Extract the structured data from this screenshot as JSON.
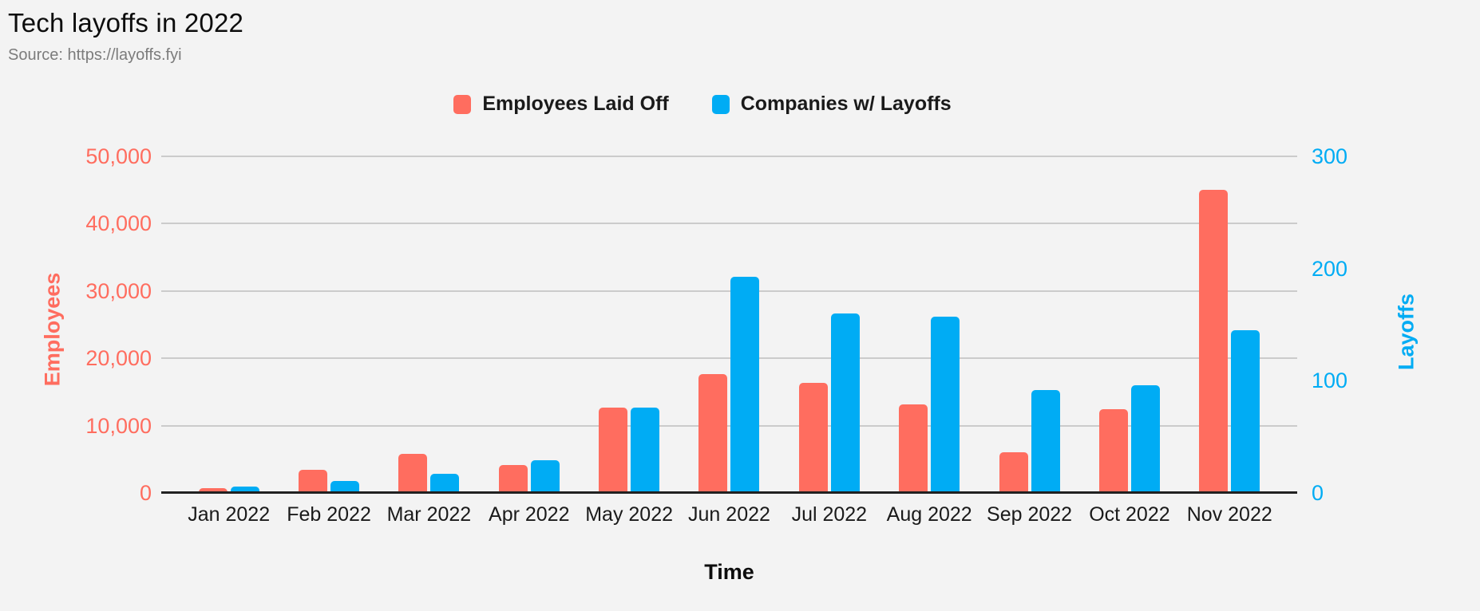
{
  "header": {
    "title": "Tech layoffs in 2022",
    "source": "Source: https://layoffs.fyi"
  },
  "colors": {
    "background": "#f3f3f3",
    "employees_red": "#FF6D5F",
    "companies_blue": "#00ACF4",
    "gridline": "#cbcbcb",
    "axis_line": "#212121"
  },
  "chart_data": {
    "type": "bar",
    "title": "Tech layoffs in 2022",
    "source": "Source: https://layoffs.fyi",
    "categories": [
      "Jan 2022",
      "Feb 2022",
      "Mar 2022",
      "Apr 2022",
      "May 2022",
      "Jun 2022",
      "Jul 2022",
      "Aug 2022",
      "Sep 2022",
      "Oct 2022",
      "Nov 2022"
    ],
    "series": [
      {
        "name": "Employees Laid Off",
        "axis": "left",
        "color": "#FF6D5F",
        "values": [
          700,
          3500,
          5800,
          4100,
          12700,
          17700,
          16300,
          13200,
          6000,
          12500,
          45000
        ]
      },
      {
        "name": "Companies w/ Layoffs",
        "axis": "right",
        "color": "#00ACF4",
        "values": [
          6,
          11,
          17,
          29,
          76,
          193,
          160,
          157,
          92,
          96,
          145
        ]
      }
    ],
    "xlabel": "Time",
    "left_axis": {
      "label": "Employees",
      "color": "#FF6D5F",
      "min": 0,
      "max": 50000,
      "ticks": [
        {
          "label": "50,000",
          "value": 50000
        },
        {
          "label": "40,000",
          "value": 40000
        },
        {
          "label": "30,000",
          "value": 30000
        },
        {
          "label": "20,000",
          "value": 20000
        },
        {
          "label": "10,000",
          "value": 10000
        },
        {
          "label": "0",
          "value": 0
        }
      ]
    },
    "right_axis": {
      "label": "Layoffs",
      "color": "#00ACF4",
      "min": 0,
      "max": 300,
      "ticks": [
        {
          "label": "300",
          "value": 300
        },
        {
          "label": "200",
          "value": 200
        },
        {
          "label": "100",
          "value": 100
        },
        {
          "label": "0",
          "value": 0
        }
      ]
    },
    "grid": true,
    "legend_position": "top"
  }
}
